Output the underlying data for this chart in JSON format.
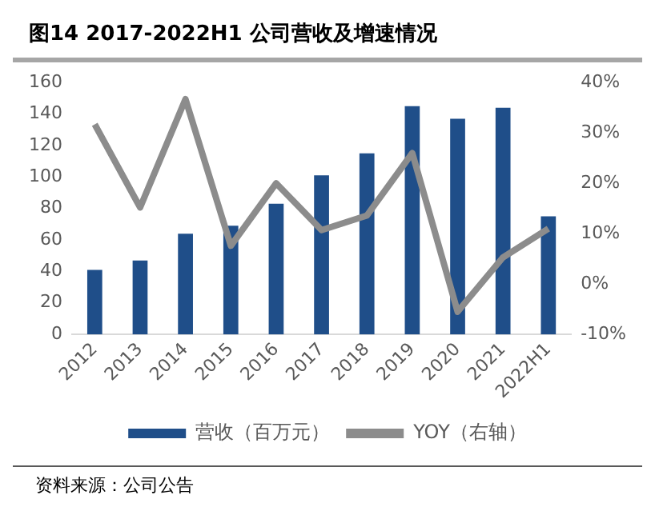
{
  "chart_data": {
    "type": "bar",
    "title": "图14 2017-2022H1 公司营收及增速情况",
    "categories": [
      "2012",
      "2013",
      "2014",
      "2015",
      "2016",
      "2017",
      "2018",
      "2019",
      "2020",
      "2021",
      "2022H1"
    ],
    "series": [
      {
        "name": "营收（百万元）",
        "color": "#1f4e89",
        "values": [
          41,
          47,
          64,
          69,
          83,
          101,
          115,
          145,
          137,
          144,
          75
        ]
      },
      {
        "name": "YOY（右轴）",
        "type": "line",
        "axis": "y2",
        "color": "#8c8c8c",
        "values": [
          31.7,
          15.2,
          36.7,
          7.6,
          20,
          10.7,
          13.6,
          26,
          -5.5,
          5.3,
          11
        ]
      }
    ],
    "ylim": [
      0,
      160
    ],
    "yticks": [
      0,
      20,
      40,
      60,
      80,
      100,
      120,
      140,
      160
    ],
    "y2lim": [
      -10,
      40
    ],
    "y2ticks": [
      {
        "value": -10,
        "label": "-10%"
      },
      {
        "value": 0,
        "label": "0%"
      },
      {
        "value": 10,
        "label": "10%"
      },
      {
        "value": 20,
        "label": "20%"
      },
      {
        "value": 30,
        "label": "30%"
      },
      {
        "value": 40,
        "label": "40%"
      }
    ],
    "grid": false,
    "legend": "bottom",
    "marker": "none",
    "annotations": [
      "资料来源：公司公告"
    ]
  }
}
